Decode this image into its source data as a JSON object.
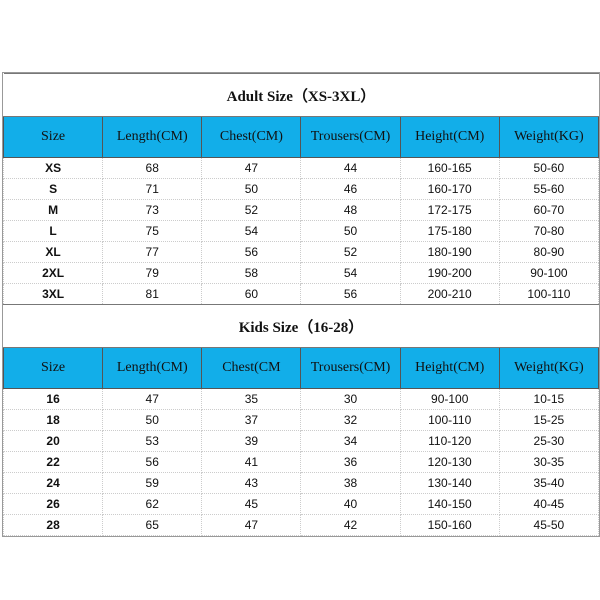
{
  "colors": {
    "header": "#12aee9"
  },
  "columns_adult": [
    "Size",
    "Length(CM)",
    "Chest(CM)",
    "Trousers(CM)",
    "Height(CM)",
    "Weight(KG)"
  ],
  "columns_kids": [
    "Size",
    "Length(CM)",
    "Chest(CM",
    "Trousers(CM)",
    "Height(CM)",
    "Weight(KG)"
  ],
  "adult": {
    "title": "Adult Size（XS-3XL）",
    "rows": [
      [
        "XS",
        "68",
        "47",
        "44",
        "160-165",
        "50-60"
      ],
      [
        "S",
        "71",
        "50",
        "46",
        "160-170",
        "55-60"
      ],
      [
        "M",
        "73",
        "52",
        "48",
        "172-175",
        "60-70"
      ],
      [
        "L",
        "75",
        "54",
        "50",
        "175-180",
        "70-80"
      ],
      [
        "XL",
        "77",
        "56",
        "52",
        "180-190",
        "80-90"
      ],
      [
        "2XL",
        "79",
        "58",
        "54",
        "190-200",
        "90-100"
      ],
      [
        "3XL",
        "81",
        "60",
        "56",
        "200-210",
        "100-110"
      ]
    ]
  },
  "kids": {
    "title": "Kids Size（16-28）",
    "rows": [
      [
        "16",
        "47",
        "35",
        "30",
        "90-100",
        "10-15"
      ],
      [
        "18",
        "50",
        "37",
        "32",
        "100-110",
        "15-25"
      ],
      [
        "20",
        "53",
        "39",
        "34",
        "110-120",
        "25-30"
      ],
      [
        "22",
        "56",
        "41",
        "36",
        "120-130",
        "30-35"
      ],
      [
        "24",
        "59",
        "43",
        "38",
        "130-140",
        "35-40"
      ],
      [
        "26",
        "62",
        "45",
        "40",
        "140-150",
        "40-45"
      ],
      [
        "28",
        "65",
        "47",
        "42",
        "150-160",
        "45-50"
      ]
    ]
  }
}
